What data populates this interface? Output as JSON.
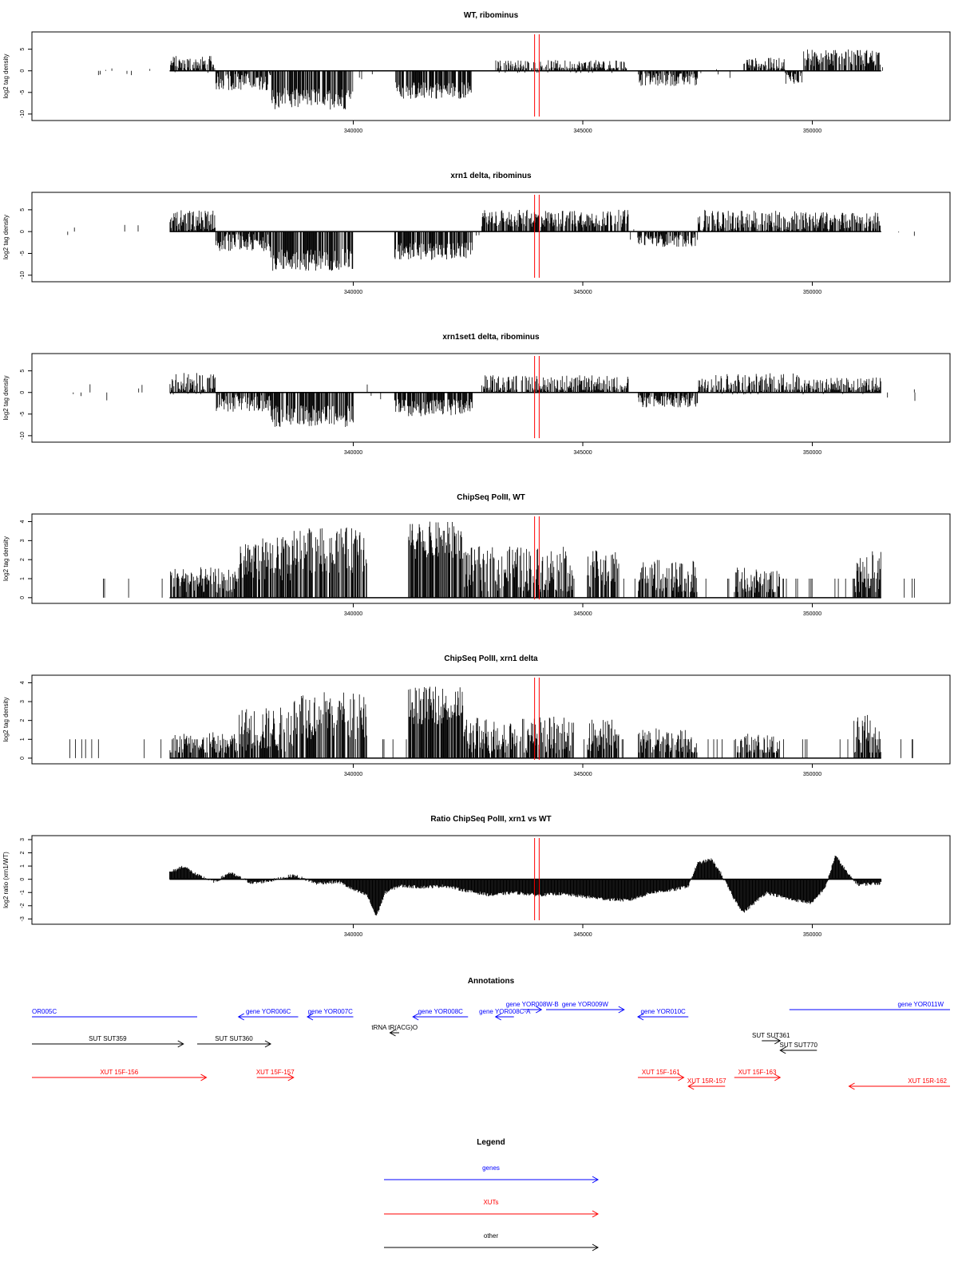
{
  "chart_data": [
    {
      "type": "bar",
      "title": "WT, ribominus",
      "ylabel": "log2 tag density",
      "xlim": [
        333000,
        353000
      ],
      "ylim": [
        -11.5,
        9
      ],
      "y_ticks": [
        -10,
        -5,
        0,
        5
      ],
      "x_ticks": [
        340000,
        345000,
        350000
      ],
      "x_tick_labels": [
        "340000",
        "345000",
        "350000"
      ],
      "marker_lines_x": [
        343950,
        344050
      ],
      "segments": [
        {
          "x": [
            336000,
            337000
          ],
          "mean": 1.5,
          "amp": 2.0
        },
        {
          "x": [
            337000,
            338200
          ],
          "mean": -2.5,
          "amp": 2.0
        },
        {
          "x": [
            338200,
            340000
          ],
          "mean": -6.5,
          "amp": 2.5
        },
        {
          "x": [
            340900,
            342600
          ],
          "mean": -4.5,
          "amp": 2.0
        },
        {
          "x": [
            343100,
            346000
          ],
          "mean": 1.0,
          "amp": 1.5
        },
        {
          "x": [
            346200,
            347500
          ],
          "mean": -2.0,
          "amp": 1.5
        },
        {
          "x": [
            348500,
            349400
          ],
          "mean": 1.5,
          "amp": 1.5
        },
        {
          "x": [
            349400,
            349800
          ],
          "mean": -1.5,
          "amp": 1.5
        },
        {
          "x": [
            349800,
            351500
          ],
          "mean": 3.0,
          "amp": 2.0
        }
      ]
    },
    {
      "type": "bar",
      "title": "xrn1 delta, ribominus",
      "ylabel": "log2 tag density",
      "xlim": [
        333000,
        353000
      ],
      "ylim": [
        -11.5,
        9
      ],
      "y_ticks": [
        -10,
        -5,
        0,
        5
      ],
      "x_ticks": [
        340000,
        345000,
        350000
      ],
      "x_tick_labels": [
        "340000",
        "345000",
        "350000"
      ],
      "marker_lines_x": [
        343950,
        344050
      ],
      "segments": [
        {
          "x": [
            336000,
            337000
          ],
          "mean": 2.5,
          "amp": 2.5
        },
        {
          "x": [
            337000,
            338200
          ],
          "mean": -2.5,
          "amp": 2.0
        },
        {
          "x": [
            338200,
            340000
          ],
          "mean": -6.5,
          "amp": 2.5
        },
        {
          "x": [
            340900,
            342600
          ],
          "mean": -4.5,
          "amp": 2.0
        },
        {
          "x": [
            342800,
            346000
          ],
          "mean": 3.0,
          "amp": 2.0
        },
        {
          "x": [
            346200,
            347500
          ],
          "mean": -2.0,
          "amp": 1.5
        },
        {
          "x": [
            347500,
            349800
          ],
          "mean": 2.5,
          "amp": 2.5
        },
        {
          "x": [
            349800,
            351500
          ],
          "mean": 2.5,
          "amp": 2.0
        }
      ]
    },
    {
      "type": "bar",
      "title": "xrn1set1 delta, ribominus",
      "ylabel": "log2 tag density",
      "xlim": [
        333000,
        353000
      ],
      "ylim": [
        -11.5,
        9
      ],
      "y_ticks": [
        -10,
        -5,
        0,
        5
      ],
      "x_ticks": [
        340000,
        345000,
        350000
      ],
      "x_tick_labels": [
        "340000",
        "345000",
        "350000"
      ],
      "marker_lines_x": [
        343950,
        344050
      ],
      "segments": [
        {
          "x": [
            336000,
            337000
          ],
          "mean": 2.0,
          "amp": 2.5
        },
        {
          "x": [
            337000,
            338200
          ],
          "mean": -2.5,
          "amp": 2.0
        },
        {
          "x": [
            338200,
            340000
          ],
          "mean": -5.5,
          "amp": 2.5
        },
        {
          "x": [
            340900,
            342600
          ],
          "mean": -3.5,
          "amp": 2.0
        },
        {
          "x": [
            342800,
            346000
          ],
          "mean": 2.0,
          "amp": 2.0
        },
        {
          "x": [
            346200,
            347500
          ],
          "mean": -2.0,
          "amp": 1.5
        },
        {
          "x": [
            347500,
            349800
          ],
          "mean": 2.0,
          "amp": 2.5
        },
        {
          "x": [
            349800,
            351500
          ],
          "mean": 1.5,
          "amp": 2.0
        }
      ]
    },
    {
      "type": "bar",
      "title": "ChipSeq PolII, WT",
      "ylabel": "log2 tag density",
      "xlim": [
        333000,
        353000
      ],
      "ylim": [
        -0.3,
        4.4
      ],
      "y_ticks": [
        0,
        1,
        2,
        3,
        4
      ],
      "x_ticks": [
        340000,
        345000,
        350000
      ],
      "x_tick_labels": [
        "340000",
        "345000",
        "350000"
      ],
      "marker_lines_x": [
        343950,
        344050
      ],
      "segments": [
        {
          "x": [
            336000,
            337500
          ],
          "mean": 0.8,
          "amp": 0.8
        },
        {
          "x": [
            337500,
            338700
          ],
          "mean": 2.0,
          "amp": 1.2
        },
        {
          "x": [
            338700,
            340300
          ],
          "mean": 2.5,
          "amp": 1.2
        },
        {
          "x": [
            341200,
            342400
          ],
          "mean": 3.0,
          "amp": 1.0
        },
        {
          "x": [
            342400,
            344800
          ],
          "mean": 1.5,
          "amp": 1.2
        },
        {
          "x": [
            345100,
            345800
          ],
          "mean": 1.5,
          "amp": 1.0
        },
        {
          "x": [
            346200,
            347500
          ],
          "mean": 1.0,
          "amp": 1.0
        },
        {
          "x": [
            348300,
            349300
          ],
          "mean": 0.8,
          "amp": 0.8
        },
        {
          "x": [
            350900,
            351500
          ],
          "mean": 1.0,
          "amp": 1.5
        }
      ]
    },
    {
      "type": "bar",
      "title": "ChipSeq PolII, xrn1 delta",
      "ylabel": "log2 tag density",
      "xlim": [
        333000,
        353000
      ],
      "ylim": [
        -0.3,
        4.4
      ],
      "y_ticks": [
        0,
        1,
        2,
        3,
        4
      ],
      "x_ticks": [
        340000,
        345000,
        350000
      ],
      "x_tick_labels": [
        "340000",
        "345000",
        "350000"
      ],
      "marker_lines_x": [
        343950,
        344050
      ],
      "segments": [
        {
          "x": [
            336000,
            337500
          ],
          "mean": 0.6,
          "amp": 0.8
        },
        {
          "x": [
            337500,
            338700
          ],
          "mean": 1.5,
          "amp": 1.2
        },
        {
          "x": [
            338700,
            340300
          ],
          "mean": 2.3,
          "amp": 1.3
        },
        {
          "x": [
            341200,
            342400
          ],
          "mean": 2.8,
          "amp": 1.0
        },
        {
          "x": [
            342400,
            344800
          ],
          "mean": 1.2,
          "amp": 1.0
        },
        {
          "x": [
            345100,
            345800
          ],
          "mean": 1.2,
          "amp": 0.9
        },
        {
          "x": [
            346200,
            347500
          ],
          "mean": 0.8,
          "amp": 0.8
        },
        {
          "x": [
            348300,
            349300
          ],
          "mean": 0.6,
          "amp": 0.7
        },
        {
          "x": [
            350900,
            351500
          ],
          "mean": 0.8,
          "amp": 1.5
        }
      ]
    },
    {
      "type": "area",
      "title": "Ratio ChipSeq PolII, xrn1 vs WT",
      "ylabel": "log2 ratio (xrn1/WT)",
      "xlim": [
        333000,
        353000
      ],
      "ylim": [
        -3.4,
        3.3
      ],
      "y_ticks": [
        -3,
        -2,
        -1,
        0,
        1,
        2,
        3
      ],
      "x_ticks": [
        340000,
        345000,
        350000
      ],
      "x_tick_labels": [
        "340000",
        "345000",
        "350000"
      ],
      "marker_lines_x": [
        343950,
        344050
      ],
      "x": [
        336000,
        336300,
        336600,
        337000,
        337300,
        337800,
        338200,
        338700,
        339200,
        339700,
        340000,
        340300,
        340500,
        340700,
        341000,
        341500,
        342000,
        342500,
        343000,
        343500,
        344000,
        344500,
        345000,
        345500,
        346000,
        346500,
        347000,
        347300,
        347500,
        347800,
        348000,
        348300,
        348500,
        349000,
        349500,
        350000,
        350300,
        350500,
        350800,
        351000,
        351500
      ],
      "y": [
        0.5,
        1.0,
        0.3,
        -0.2,
        0.5,
        -0.3,
        -0.1,
        0.3,
        -0.3,
        -0.2,
        -0.8,
        -1.2,
        -2.8,
        -1.0,
        -0.5,
        -0.6,
        -0.5,
        -0.9,
        -1.2,
        -1.0,
        -1.2,
        -1.1,
        -1.3,
        -1.5,
        -1.6,
        -1.0,
        -0.8,
        -0.5,
        1.2,
        1.5,
        0.5,
        -1.5,
        -2.5,
        -1.0,
        -1.5,
        -1.8,
        -0.5,
        1.8,
        0.3,
        -0.4,
        -0.3
      ]
    }
  ],
  "annotations": {
    "title": "Annotations",
    "genes": [
      {
        "label": "OR005C",
        "x1": 333000,
        "x2": 336600,
        "dir": "none"
      },
      {
        "label": "gene YOR006C",
        "x1": 337500,
        "x2": 338800,
        "dir": "left"
      },
      {
        "label": "gene YOR007C",
        "x1": 339000,
        "x2": 340000,
        "dir": "left"
      },
      {
        "label": "gene YOR008C",
        "x1": 341300,
        "x2": 342500,
        "dir": "left"
      },
      {
        "label": "gene YOR008C-A",
        "x1": 343100,
        "x2": 343500,
        "dir": "left"
      },
      {
        "label": "gene YOR008W-B",
        "x1": 343700,
        "x2": 344100,
        "dir": "right"
      },
      {
        "label": "gene YOR009W",
        "x1": 344200,
        "x2": 345900,
        "dir": "right"
      },
      {
        "label": "gene YOR010C",
        "x1": 346200,
        "x2": 347300,
        "dir": "left"
      },
      {
        "label": "gene YOR011W",
        "x1": 349500,
        "x2": 353000,
        "dir": "none"
      }
    ],
    "others": [
      {
        "label": "SUT SUT359",
        "x1": 333000,
        "x2": 336300,
        "dir": "right"
      },
      {
        "label": "SUT SUT360",
        "x1": 336600,
        "x2": 338200,
        "dir": "right"
      },
      {
        "label": "tRNA tR(ACG)O",
        "x1": 340800,
        "x2": 341000,
        "dir": "left"
      },
      {
        "label": "SUT SUT361",
        "x1": 348900,
        "x2": 349300,
        "dir": "right"
      },
      {
        "label": "SUT SUT770",
        "x1": 349300,
        "x2": 350100,
        "dir": "left"
      }
    ],
    "xuts": [
      {
        "label": "XUT 15F-156",
        "x1": 333000,
        "x2": 336800,
        "dir": "right"
      },
      {
        "label": "XUT 15F-157",
        "x1": 337900,
        "x2": 338700,
        "dir": "right"
      },
      {
        "label": "XUT 15F-161",
        "x1": 346200,
        "x2": 347200,
        "dir": "right"
      },
      {
        "label": "XUT 15R-157",
        "x1": 347300,
        "x2": 348100,
        "dir": "left"
      },
      {
        "label": "XUT 15F-163",
        "x1": 348300,
        "x2": 349300,
        "dir": "right"
      },
      {
        "label": "XUT 15R-162",
        "x1": 350800,
        "x2": 353000,
        "dir": "left"
      }
    ]
  },
  "legend": {
    "title": "Legend",
    "entries": [
      {
        "label": "genes",
        "color": "#0000ff"
      },
      {
        "label": "XUTs",
        "color": "#ff0000"
      },
      {
        "label": "other",
        "color": "#000000"
      }
    ]
  },
  "colors": {
    "gene": "#0000ff",
    "xut": "#ff0000",
    "other": "#000000",
    "marker": "#ff0000",
    "bars": "#000000"
  }
}
